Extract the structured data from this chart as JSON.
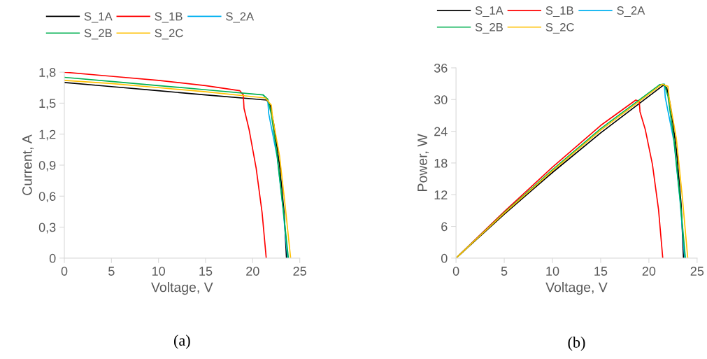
{
  "chart_data": [
    {
      "type": "line",
      "xlabel": "Voltage, V",
      "ylabel": "Current, A",
      "annotations": [
        "(a)"
      ],
      "legend": "top",
      "grid": false,
      "xlim": [
        0,
        25
      ],
      "xticks": [
        0,
        5,
        10,
        15,
        20,
        25
      ],
      "ylim": [
        0,
        1.8
      ],
      "yticks": [
        0,
        {
          "value": 0.3,
          "label": "0,3"
        },
        {
          "value": 0.6,
          "label": "0,6"
        },
        {
          "value": 0.9,
          "label": "0,9"
        },
        {
          "value": 1.2,
          "label": "1,2"
        },
        {
          "value": 1.5,
          "label": "1,5"
        },
        {
          "value": 1.8,
          "label": "1,8"
        }
      ],
      "series": [
        {
          "name": "S_1A",
          "color": "#000000",
          "x": [
            0,
            5,
            10,
            15,
            21.49,
            21.86,
            22.23,
            22.85,
            23.34,
            23.59
          ],
          "values": [
            1.7,
            1.66,
            1.62,
            1.58,
            1.53,
            1.48,
            1.3,
            0.9,
            0.44,
            0
          ]
        },
        {
          "name": "S_1B",
          "color": "#ff0000",
          "x": [
            0,
            5,
            10,
            15,
            18.64,
            19.0,
            19.08,
            19.63,
            20.37,
            21.0,
            21.44
          ],
          "values": [
            1.8,
            1.76,
            1.72,
            1.67,
            1.62,
            1.58,
            1.45,
            1.24,
            0.87,
            0.44,
            0
          ]
        },
        {
          "name": "S_2A",
          "color": "#00b0f0",
          "x": [
            21.1,
            21.6,
            21.7,
            22.6,
            23.22,
            23.71
          ],
          "values": [
            1.58,
            1.53,
            1.4,
            0.98,
            0.48,
            0
          ]
        },
        {
          "name": "S_2B",
          "color": "#00b050",
          "x": [
            0,
            5,
            10,
            15,
            21.11,
            21.6,
            21.98,
            22.6,
            23.22,
            23.79
          ],
          "values": [
            1.75,
            1.71,
            1.67,
            1.63,
            1.58,
            1.54,
            1.39,
            0.99,
            0.49,
            0
          ]
        },
        {
          "name": "S_2C",
          "color": "#ffc000",
          "x": [
            0,
            5,
            10,
            15,
            21.36,
            21.98,
            22.1,
            22.85,
            23.47,
            24.03
          ],
          "values": [
            1.72,
            1.69,
            1.65,
            1.61,
            1.55,
            1.48,
            1.37,
            0.99,
            0.49,
            0
          ]
        }
      ]
    },
    {
      "type": "line",
      "xlabel": "Voltage, V",
      "ylabel": "Power, W",
      "annotations": [
        "(b)"
      ],
      "legend": "top",
      "grid": false,
      "xlim": [
        0,
        25
      ],
      "xticks": [
        0,
        5,
        10,
        15,
        20,
        25
      ],
      "ylim": [
        0,
        36
      ],
      "yticks": [
        0,
        6,
        12,
        18,
        24,
        30,
        36
      ],
      "series": [
        {
          "name": "S_1A",
          "color": "#000000",
          "x": [
            0,
            5,
            10,
            15,
            21.49,
            21.86,
            22.23,
            22.85,
            23.34,
            23.59
          ],
          "values": [
            0,
            8.3,
            16.2,
            23.7,
            32.7,
            32.2,
            28.9,
            20.6,
            10.3,
            0
          ]
        },
        {
          "name": "S_1B",
          "color": "#ff0000",
          "x": [
            0,
            5,
            10,
            15,
            18.64,
            19.0,
            19.08,
            19.63,
            20.37,
            21.0,
            21.44
          ],
          "values": [
            0,
            8.8,
            17.2,
            25.1,
            29.9,
            29.7,
            27.7,
            24.3,
            17.7,
            9.2,
            0
          ]
        },
        {
          "name": "S_2A",
          "color": "#00b0f0",
          "x": [
            21.1,
            21.6,
            21.7,
            22.6,
            23.22,
            23.71
          ],
          "values": [
            32.8,
            32.9,
            30.4,
            22.1,
            11.1,
            0
          ]
        },
        {
          "name": "S_2B",
          "color": "#00b050",
          "x": [
            0,
            5,
            10,
            15,
            21.11,
            21.6,
            21.98,
            22.6,
            23.22,
            23.79
          ],
          "values": [
            0,
            8.6,
            16.7,
            24.5,
            32.8,
            32.9,
            30.6,
            22.4,
            11.4,
            0
          ]
        },
        {
          "name": "S_2C",
          "color": "#ffc000",
          "x": [
            0,
            5,
            10,
            15,
            21.36,
            21.98,
            22.1,
            22.85,
            23.47,
            24.03
          ],
          "values": [
            0,
            8.5,
            16.5,
            24.2,
            32.9,
            32.5,
            30.3,
            22.6,
            11.5,
            0
          ]
        }
      ]
    }
  ]
}
